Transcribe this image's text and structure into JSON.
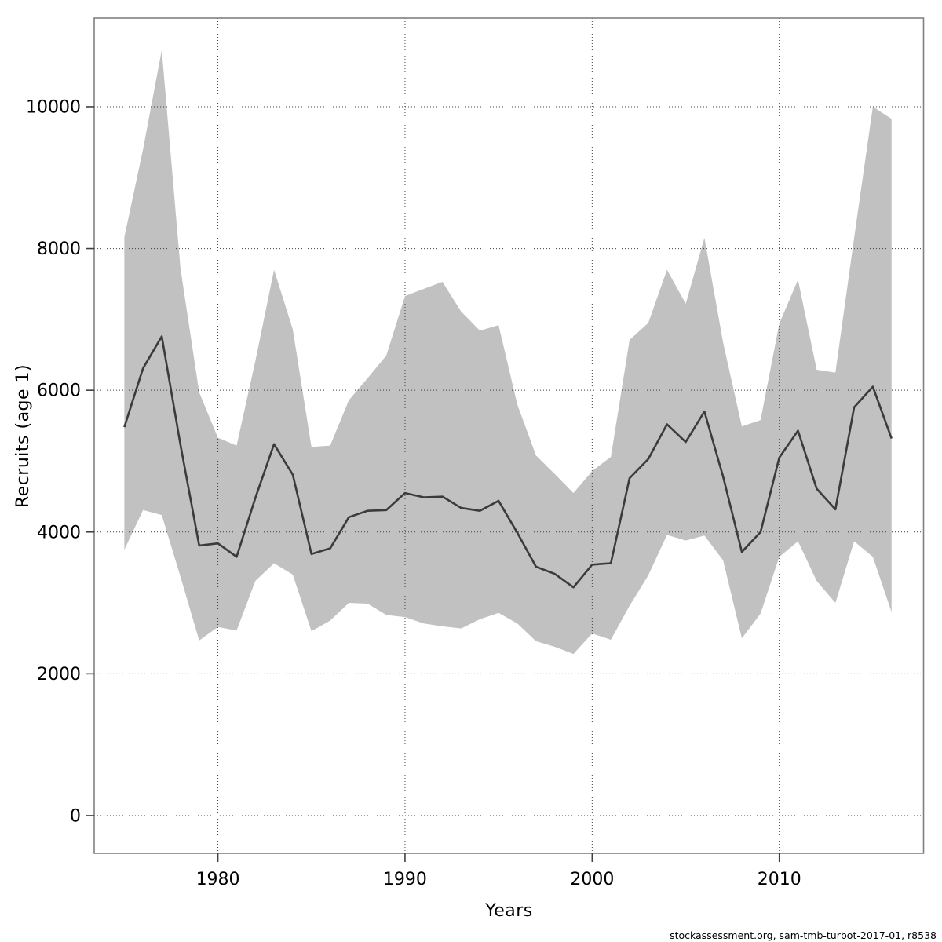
{
  "chart_data": {
    "type": "area",
    "variant": "median-line-with-confidence-band",
    "title": "",
    "xlabel": "Years",
    "ylabel": "Recruits (age 1)",
    "footer": "stockassessment.org, sam-tmb-turbot-2017-01, r8538",
    "legend": "none",
    "grid": "dotted",
    "xlim": [
      1973.39,
      2017.71
    ],
    "ylim": [
      -532,
      11251
    ],
    "xticks": [
      1980,
      1990,
      2000,
      2010
    ],
    "yticks": [
      0,
      2000,
      4000,
      6000,
      8000,
      10000
    ],
    "colors": {
      "band": "#c1c1c1",
      "line": "#3b3b3b",
      "grid": "#3c3c3c",
      "frame": "#808080",
      "tick": "#404040",
      "text": "#000000"
    },
    "x": [
      1975,
      1976,
      1977,
      1978,
      1979,
      1980,
      1981,
      1982,
      1983,
      1984,
      1985,
      1986,
      1987,
      1988,
      1989,
      1990,
      1991,
      1992,
      1993,
      1994,
      1995,
      1996,
      1997,
      1998,
      1999,
      2000,
      2001,
      2002,
      2003,
      2004,
      2005,
      2006,
      2007,
      2008,
      2009,
      2010,
      2011,
      2012,
      2013,
      2014,
      2015,
      2016
    ],
    "series": [
      {
        "name": "median",
        "values": [
          5480,
          6310,
          6760,
          5230,
          3810,
          3840,
          3650,
          4480,
          5240,
          4810,
          3690,
          3770,
          4210,
          4300,
          4310,
          4550,
          4490,
          4500,
          4340,
          4300,
          4440,
          3990,
          3510,
          3410,
          3220,
          3540,
          3560,
          4760,
          5030,
          5520,
          5270,
          5700,
          4780,
          3720,
          4000,
          5050,
          5430,
          4610,
          4320,
          5760,
          6050,
          5320
        ]
      },
      {
        "name": "lower_ci",
        "values": [
          3750,
          4310,
          4240,
          3370,
          2470,
          2660,
          2610,
          3310,
          3560,
          3400,
          2600,
          2750,
          3000,
          2990,
          2830,
          2800,
          2710,
          2670,
          2640,
          2770,
          2860,
          2710,
          2460,
          2380,
          2280,
          2570,
          2480,
          2960,
          3390,
          3960,
          3880,
          3950,
          3600,
          2500,
          2850,
          3650,
          3870,
          3310,
          3000,
          3870,
          3650,
          2870
        ]
      },
      {
        "name": "upper_ci",
        "values": [
          8160,
          9400,
          10800,
          7720,
          5970,
          5330,
          5220,
          6410,
          7700,
          6860,
          5200,
          5220,
          5860,
          6170,
          6490,
          7330,
          7430,
          7530,
          7110,
          6840,
          6920,
          5800,
          5080,
          4820,
          4550,
          4860,
          5060,
          6710,
          6950,
          7700,
          7220,
          8150,
          6670,
          5490,
          5580,
          6940,
          7560,
          6290,
          6250,
          8150,
          10000,
          9830
        ]
      }
    ]
  }
}
